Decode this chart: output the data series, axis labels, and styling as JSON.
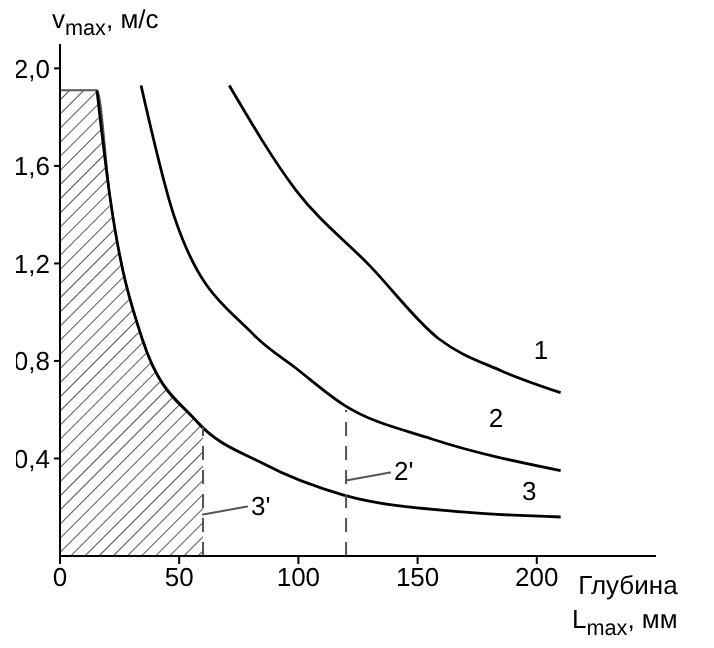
{
  "chart_data": {
    "type": "line",
    "ylabel": "v$_{max}$, м/с",
    "xlabel": "Глубина L$_{max}$, мм",
    "xlim": [
      0,
      250
    ],
    "ylim": [
      0,
      2.1
    ],
    "xticks": [
      0,
      50,
      100,
      150,
      200
    ],
    "yticks": [
      {
        "value": 0.4,
        "label": "0,4"
      },
      {
        "value": 0.8,
        "label": "0,8"
      },
      {
        "value": 1.2,
        "label": "1,2"
      },
      {
        "value": 1.6,
        "label": "1,6"
      },
      {
        "value": 2.0,
        "label": "2,0"
      }
    ],
    "grid": false,
    "series": [
      {
        "type": "area",
        "color": "#555555",
        "x": [
          0,
          15.5,
          21,
          34.5,
          56.6,
          60
        ],
        "values": [
          1.91,
          1.91,
          1.47,
          0.89,
          0.56,
          0.53
        ]
      },
      {
        "name": "1",
        "color": "#000000",
        "x": [
          71,
          99,
          130,
          159,
          185,
          210
        ],
        "values": [
          1.93,
          1.5,
          1.19,
          0.89,
          0.76,
          0.67
        ]
      },
      {
        "name": "2",
        "color": "#000000",
        "x": [
          34,
          48,
          81,
          99,
          119,
          156,
          210
        ],
        "values": [
          1.93,
          1.39,
          0.91,
          0.77,
          0.62,
          0.48,
          0.35
        ]
      },
      {
        "name": "3",
        "color": "#000000",
        "x": [
          15.5,
          21,
          34.5,
          56.6,
          85,
          119,
          170,
          210
        ],
        "values": [
          1.91,
          1.47,
          0.89,
          0.56,
          0.38,
          0.25,
          0.18,
          0.16
        ]
      },
      {
        "color": "#555555",
        "line_style": "dashed",
        "x": [
          60,
          60
        ],
        "values": [
          0,
          0.53
        ]
      },
      {
        "color": "#555555",
        "line_style": "dashed",
        "x": [
          120,
          120
        ],
        "values": [
          0,
          0.6
        ]
      }
    ],
    "annotations": [
      {
        "text": "3'",
        "x": 60,
        "y": 0.17
      },
      {
        "text": "2'",
        "x": 120,
        "y": 0.31
      }
    ]
  }
}
